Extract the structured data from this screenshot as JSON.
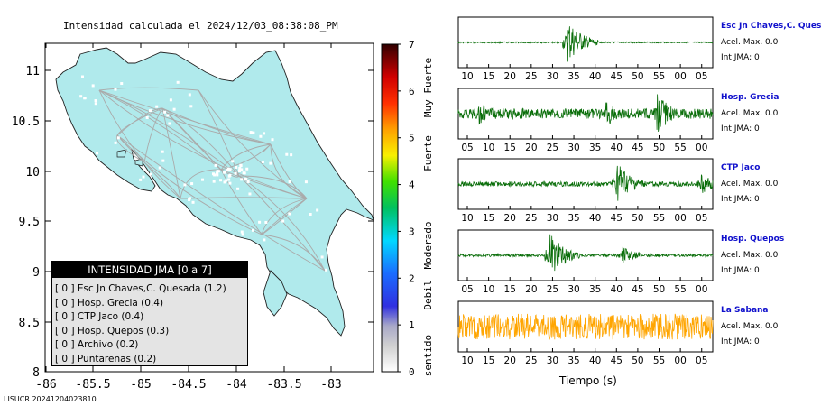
{
  "map": {
    "title": "Intensidad calculada el 2024/12/03_08:38:08_PM",
    "x_ticks": [
      "-86",
      "-85.5",
      "-85",
      "-84.5",
      "-84",
      "-83.5",
      "-83"
    ],
    "y_ticks": [
      "11",
      "10.5",
      "10",
      "9.5",
      "9",
      "8.5",
      "8"
    ]
  },
  "legend": {
    "title": "INTENSIDAD JMA [0 a 7]",
    "rows": [
      "[ 0 ]  Esc Jn Chaves,C. Quesada (1.2)",
      "[ 0 ]  Hosp. Grecia (0.4)",
      "[ 0 ]  CTP Jaco (0.4)",
      "[ 0 ]  Hosp. Quepos (0.3)",
      "[ 0 ]  Archivo (0.2)",
      "[ 0 ]  Puntarenas (0.2)"
    ]
  },
  "colorbar": {
    "ticks": [
      "7",
      "6",
      "5",
      "4",
      "3",
      "2",
      "1",
      "0"
    ],
    "bands": [
      "Muy Fuerte",
      "Fuerte",
      "Moderado",
      "Debil",
      "No sentido"
    ]
  },
  "stations": [
    {
      "name": "Esc Jn Chaves,C. Ques",
      "acel": "Acel. Max. 0.0",
      "jma": "Int JMA: 0",
      "color": "#0a6e0a",
      "ticks": [
        "10",
        "15",
        "20",
        "25",
        "30",
        "35",
        "40",
        "45",
        "50",
        "55",
        "00",
        "05"
      ]
    },
    {
      "name": "Hosp. Grecia",
      "acel": "Acel. Max. 0.0",
      "jma": "Int JMA: 0",
      "color": "#0a6e0a",
      "ticks": [
        "05",
        "10",
        "15",
        "20",
        "25",
        "30",
        "35",
        "40",
        "45",
        "50",
        "55",
        "00"
      ]
    },
    {
      "name": "CTP Jaco",
      "acel": "Acel. Max. 0.0",
      "jma": "Int JMA: 0",
      "color": "#0a6e0a",
      "ticks": [
        "10",
        "15",
        "20",
        "25",
        "30",
        "35",
        "40",
        "45",
        "50",
        "55",
        "00",
        "05"
      ]
    },
    {
      "name": "Hosp. Quepos",
      "acel": "Acel. Max. 0.0",
      "jma": "Int JMA: 0",
      "color": "#0a6e0a",
      "ticks": [
        "05",
        "10",
        "15",
        "20",
        "25",
        "30",
        "35",
        "40",
        "45",
        "50",
        "55",
        "00"
      ]
    },
    {
      "name": "La Sabana",
      "acel": "Acel. Max. 0.0",
      "jma": "Int JMA: 0",
      "color": "#ffa500",
      "ticks": [
        "10",
        "15",
        "20",
        "25",
        "30",
        "35",
        "40",
        "45",
        "50",
        "55",
        "00",
        "05"
      ]
    }
  ],
  "xlabel": "Tiempo (s)",
  "footer": "LISUCR 20241204023810",
  "chart_data": [
    {
      "type": "map",
      "title": "Intensidad calculada el 2024/12/03_08:38:08_PM",
      "xlim": [
        -86.2,
        -82.6
      ],
      "ylim": [
        8.0,
        11.3
      ],
      "legend_placement": "bottom-left",
      "colorbar": {
        "range": [
          0,
          7
        ],
        "labels": [
          "No sentido",
          "Debil",
          "Moderado",
          "Fuerte",
          "Muy Fuerte"
        ]
      },
      "stations": [
        {
          "name": "Esc Jn Chaves,C. Quesada",
          "intensity_class": 0,
          "value": 1.2
        },
        {
          "name": "Hosp. Grecia",
          "intensity_class": 0,
          "value": 0.4
        },
        {
          "name": "CTP Jaco",
          "intensity_class": 0,
          "value": 0.4
        },
        {
          "name": "Hosp. Quepos",
          "intensity_class": 0,
          "value": 0.3
        },
        {
          "name": "Archivo",
          "intensity_class": 0,
          "value": 0.2
        },
        {
          "name": "Puntarenas",
          "intensity_class": 0,
          "value": 0.2
        }
      ]
    },
    {
      "type": "line",
      "xlabel": "Tiempo (s)",
      "series": [
        {
          "name": "Esc Jn Chaves,C. Ques",
          "acel_max": 0.0,
          "int_jma": 0
        },
        {
          "name": "Hosp. Grecia",
          "acel_max": 0.0,
          "int_jma": 0
        },
        {
          "name": "CTP Jaco",
          "acel_max": 0.0,
          "int_jma": 0
        },
        {
          "name": "Hosp. Quepos",
          "acel_max": 0.0,
          "int_jma": 0
        },
        {
          "name": "La Sabana",
          "acel_max": 0.0,
          "int_jma": 0
        }
      ]
    }
  ]
}
